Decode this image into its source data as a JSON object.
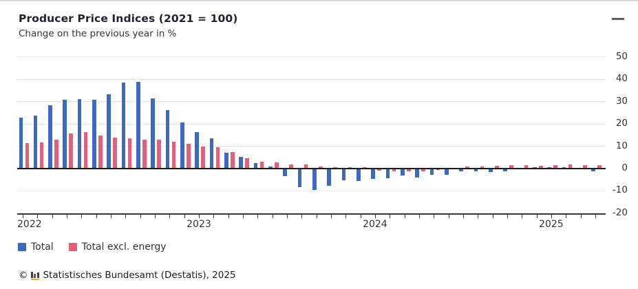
{
  "header": {
    "title": "Producer Price Indices (2021 = 100)",
    "subtitle": "Change on the previous year in %"
  },
  "menu": {
    "icon": "hamburger-menu-icon"
  },
  "colors": {
    "total": "#3a6bbf",
    "excl_energy": "#e0627a",
    "grid": "#e8e8e8",
    "axis": "#333333",
    "zero_line": "#1a1a1a"
  },
  "chart_data": {
    "type": "bar",
    "title": "Producer Price Indices (2021 = 100)",
    "subtitle": "Change on the previous year in %",
    "ylabel": "Change on the previous year in %",
    "ylim": [
      -20,
      50
    ],
    "y_ticks": [
      50,
      40,
      30,
      20,
      10,
      0,
      -10,
      -20
    ],
    "grid": "horizontal",
    "legend_position": "bottom-left",
    "months": [
      "Jan 2022",
      "Feb 2022",
      "Mar 2022",
      "Apr 2022",
      "May 2022",
      "Jun 2022",
      "Jul 2022",
      "Aug 2022",
      "Sep 2022",
      "Oct 2022",
      "Nov 2022",
      "Dec 2022",
      "Jan 2023",
      "Feb 2023",
      "Mar 2023",
      "Apr 2023",
      "May 2023",
      "Jun 2023",
      "Jul 2023",
      "Aug 2023",
      "Sep 2023",
      "Oct 2023",
      "Nov 2023",
      "Dec 2023",
      "Jan 2024",
      "Feb 2024",
      "Mar 2024",
      "Apr 2024",
      "May 2024",
      "Jun 2024",
      "Jul 2024",
      "Aug 2024",
      "Sep 2024",
      "Oct 2024",
      "Nov 2024",
      "Dec 2024",
      "Jan 2025",
      "Feb 2025",
      "Mar 2025",
      "Apr 2025"
    ],
    "x_year_ticks": [
      {
        "label": "2022",
        "month_index": 0
      },
      {
        "label": "2023",
        "month_index": 12
      },
      {
        "label": "2024",
        "month_index": 24
      },
      {
        "label": "2025",
        "month_index": 36
      }
    ],
    "series": [
      {
        "name": "Total",
        "color": "#3a6bbf",
        "values": [
          22.9,
          23.8,
          28.4,
          30.9,
          31.2,
          30.9,
          33.3,
          38.6,
          39.0,
          31.5,
          26.3,
          20.8,
          16.2,
          13.5,
          7.2,
          5.2,
          2.4,
          1.0,
          -3.3,
          -8.2,
          -9.6,
          -7.7,
          -5.3,
          -5.7,
          -4.6,
          -4.4,
          -3.0,
          -3.9,
          -2.8,
          -2.8,
          -1.3,
          -1.1,
          -1.4,
          -1.3,
          -0.2,
          0.7,
          0.5,
          0.7,
          0.3,
          -1.2
        ]
      },
      {
        "name": "Total excl. energy",
        "color": "#e0627a",
        "values": [
          11.4,
          11.6,
          13.1,
          15.7,
          16.2,
          14.7,
          13.8,
          13.5,
          13.0,
          13.0,
          12.1,
          11.1,
          9.8,
          9.7,
          7.5,
          4.5,
          3.1,
          2.7,
          1.9,
          1.8,
          1.0,
          0.7,
          0.6,
          0.5,
          -0.8,
          -1.3,
          -1.2,
          -1.2,
          -0.5,
          0.2,
          0.8,
          1.0,
          1.2,
          1.5,
          1.6,
          1.3,
          1.4,
          1.7,
          1.6,
          1.6
        ]
      }
    ]
  },
  "legend": [
    {
      "label": "Total",
      "color": "#3a6bbf"
    },
    {
      "label": "Total excl. energy",
      "color": "#e0627a"
    }
  ],
  "footer": {
    "copyright": "©",
    "logo": "destatis-bar-chart-icon",
    "source": "Statistisches Bundesamt (Destatis), 2025"
  }
}
